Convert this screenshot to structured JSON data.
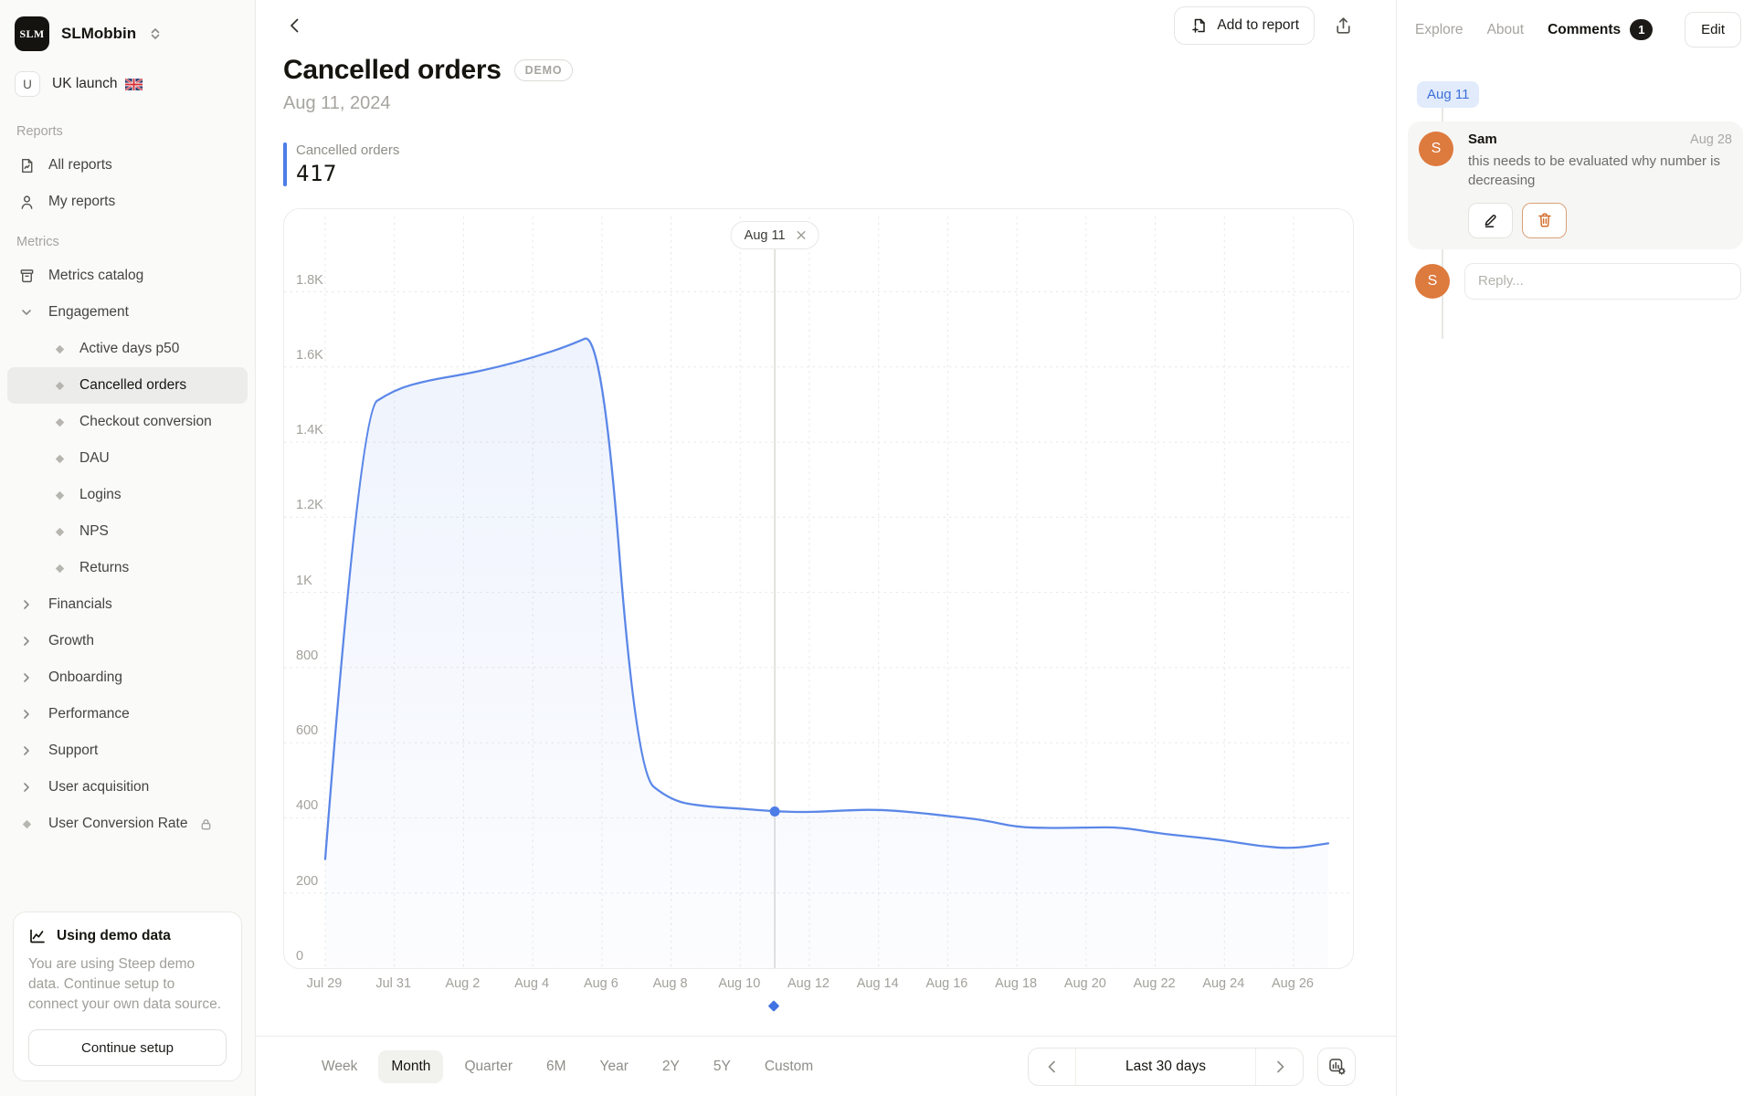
{
  "sidebar": {
    "workspace": {
      "name": "SLMobbin",
      "logo_text": "SLM"
    },
    "board": {
      "initial": "U",
      "name": "UK launch",
      "flag": "GB"
    },
    "sections": [
      {
        "label": "Reports",
        "items": [
          {
            "label": "All reports",
            "icon": "report-icon"
          },
          {
            "label": "My reports",
            "icon": "person-icon"
          }
        ]
      },
      {
        "label": "Metrics",
        "items": [
          {
            "label": "Metrics catalog",
            "icon": "catalog-icon"
          },
          {
            "label": "Engagement",
            "icon": "chevron-down-icon"
          },
          {
            "label": "Active days p50",
            "icon": "diamond-icon",
            "child": true
          },
          {
            "label": "Cancelled orders",
            "icon": "diamond-icon",
            "child": true,
            "active": true
          },
          {
            "label": "Checkout conversion",
            "icon": "diamond-icon",
            "child": true
          },
          {
            "label": "DAU",
            "icon": "diamond-icon",
            "child": true
          },
          {
            "label": "Logins",
            "icon": "diamond-icon",
            "child": true
          },
          {
            "label": "NPS",
            "icon": "diamond-icon",
            "child": true
          },
          {
            "label": "Returns",
            "icon": "diamond-icon",
            "child": true
          },
          {
            "label": "Financials",
            "icon": "chevron-right-icon"
          },
          {
            "label": "Growth",
            "icon": "chevron-right-icon"
          },
          {
            "label": "Onboarding",
            "icon": "chevron-right-icon"
          },
          {
            "label": "Performance",
            "icon": "chevron-right-icon"
          },
          {
            "label": "Support",
            "icon": "chevron-right-icon"
          },
          {
            "label": "User acquisition",
            "icon": "chevron-right-icon"
          },
          {
            "label": "User Conversion Rate",
            "icon": "diamond-icon",
            "lock": true
          }
        ]
      }
    ],
    "demo_card": {
      "title": "Using demo data",
      "body": "You are using Steep demo data. Continue setup to connect your own data source.",
      "button": "Continue setup"
    }
  },
  "main": {
    "title": "Cancelled orders",
    "badge": "DEMO",
    "date": "Aug 11, 2024",
    "metric": {
      "label": "Cancelled orders",
      "value": "417"
    },
    "add_to_report": "Add to report",
    "chart_tag": "Aug 11"
  },
  "toolbar": {
    "periods": [
      "Week",
      "Month",
      "Quarter",
      "6M",
      "Year",
      "2Y",
      "5Y",
      "Custom"
    ],
    "selected_period": "Month",
    "date_range": "Last 30 days"
  },
  "comments_panel": {
    "tabs": [
      {
        "label": "Explore"
      },
      {
        "label": "About"
      },
      {
        "label": "Comments",
        "badge": "1",
        "active": true
      }
    ],
    "edit_button": "Edit",
    "thread_tag": "Aug 11",
    "comment": {
      "author": "Sam",
      "initial": "S",
      "date": "Aug 28",
      "text": "this needs to be evaluated why number is decreasing"
    },
    "reply": {
      "initial": "S",
      "placeholder": "Reply..."
    }
  },
  "chart_data": {
    "type": "area",
    "title": "Cancelled orders",
    "x": [
      "Jul 29",
      "Jul 30",
      "Jul 31",
      "Aug 1",
      "Aug 2",
      "Aug 3",
      "Aug 4",
      "Aug 5",
      "Aug 6",
      "Aug 7",
      "Aug 8",
      "Aug 9",
      "Aug 10",
      "Aug 11",
      "Aug 12",
      "Aug 13",
      "Aug 14",
      "Aug 15",
      "Aug 16",
      "Aug 17",
      "Aug 18",
      "Aug 19",
      "Aug 20",
      "Aug 21",
      "Aug 22",
      "Aug 23",
      "Aug 24",
      "Aug 25",
      "Aug 26",
      "Aug 27"
    ],
    "values": [
      290,
      1480,
      1540,
      1565,
      1580,
      1600,
      1625,
      1655,
      1695,
      520,
      445,
      430,
      425,
      417,
      415,
      420,
      422,
      415,
      405,
      395,
      375,
      373,
      374,
      375,
      360,
      350,
      340,
      325,
      318,
      332
    ],
    "selected_point": {
      "label": "Aug 11",
      "index": 13,
      "value": 417
    },
    "x_tick_labels": [
      "Jul 29",
      "Jul 31",
      "Aug 2",
      "Aug 4",
      "Aug 6",
      "Aug 8",
      "Aug 10",
      "Aug 12",
      "Aug 14",
      "Aug 16",
      "Aug 18",
      "Aug 20",
      "Aug 22",
      "Aug 24",
      "Aug 26"
    ],
    "y_tick_values": [
      0,
      200,
      400,
      600,
      800,
      1000,
      1200,
      1400,
      1600,
      1800
    ],
    "y_tick_labels": [
      "0",
      "200",
      "400",
      "600",
      "800",
      "1K",
      "1.2K",
      "1.4K",
      "1.6K",
      "1.8K"
    ],
    "ylim": [
      0,
      2020
    ],
    "grid": "dashed",
    "legend": "none",
    "line_color": "#5b87e8",
    "selected_color": "#3f73e2"
  }
}
